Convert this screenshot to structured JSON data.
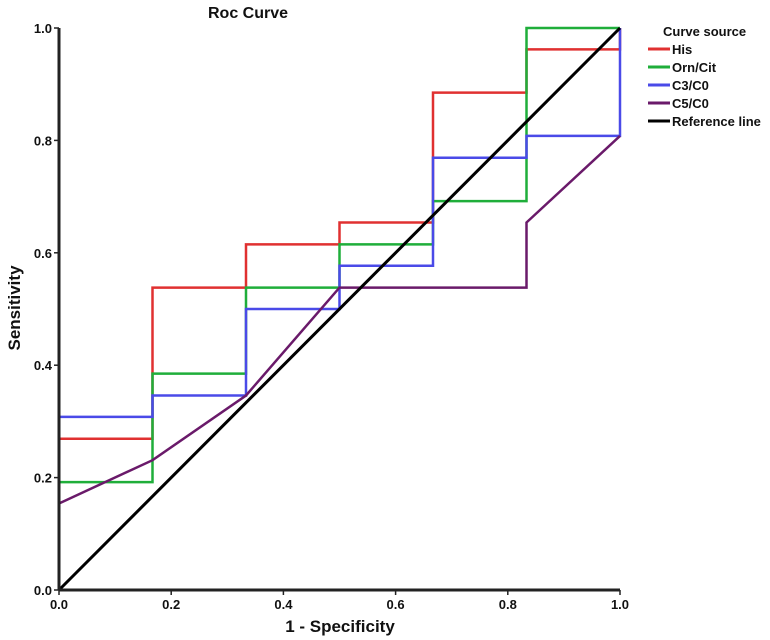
{
  "chart_data": {
    "type": "line",
    "title": "Roc Curve",
    "xlabel": "1 - Specificity",
    "ylabel": "Sensitivity",
    "xlim": [
      0,
      1
    ],
    "ylim": [
      0,
      1
    ],
    "x_ticks": [
      "0.0",
      "0.2",
      "0.4",
      "0.6",
      "0.8",
      "1.0"
    ],
    "y_ticks": [
      "0.0",
      "0.2",
      "0.4",
      "0.6",
      "0.8",
      "1.0"
    ],
    "legend_title": "Curve source",
    "legend_position": "top-right",
    "series": [
      {
        "name": "His",
        "color": "#e03030",
        "points": [
          [
            0,
            0
          ],
          [
            0,
            0.269
          ],
          [
            0.1667,
            0.269
          ],
          [
            0.1667,
            0.538
          ],
          [
            0.3333,
            0.538
          ],
          [
            0.3333,
            0.615
          ],
          [
            0.5,
            0.615
          ],
          [
            0.5,
            0.654
          ],
          [
            0.6667,
            0.654
          ],
          [
            0.6667,
            0.885
          ],
          [
            0.8333,
            0.885
          ],
          [
            0.8333,
            0.962
          ],
          [
            1,
            0.962
          ],
          [
            1,
            1
          ]
        ]
      },
      {
        "name": "Orn/Cit",
        "color": "#1fae3a",
        "points": [
          [
            0,
            0
          ],
          [
            0,
            0.192
          ],
          [
            0.1667,
            0.192
          ],
          [
            0.1667,
            0.385
          ],
          [
            0.3333,
            0.385
          ],
          [
            0.3333,
            0.538
          ],
          [
            0.5,
            0.538
          ],
          [
            0.5,
            0.615
          ],
          [
            0.6667,
            0.615
          ],
          [
            0.6667,
            0.692
          ],
          [
            0.8333,
            0.692
          ],
          [
            0.8333,
            1
          ],
          [
            1,
            1
          ]
        ]
      },
      {
        "name": "C3/C0",
        "color": "#4a4ae8",
        "points": [
          [
            0,
            0
          ],
          [
            0,
            0.308
          ],
          [
            0.1667,
            0.308
          ],
          [
            0.1667,
            0.346
          ],
          [
            0.3333,
            0.346
          ],
          [
            0.3333,
            0.5
          ],
          [
            0.5,
            0.5
          ],
          [
            0.5,
            0.577
          ],
          [
            0.6667,
            0.577
          ],
          [
            0.6667,
            0.769
          ],
          [
            0.8333,
            0.769
          ],
          [
            0.8333,
            0.808
          ],
          [
            1,
            0.808
          ],
          [
            1,
            1
          ]
        ]
      },
      {
        "name": "C5/C0",
        "color": "#6a1a6a",
        "points": [
          [
            0,
            0.154
          ],
          [
            0.1667,
            0.231
          ],
          [
            0.3333,
            0.346
          ],
          [
            0.5,
            0.538
          ],
          [
            0.8333,
            0.538
          ],
          [
            0.8333,
            0.654
          ],
          [
            1,
            0.808
          ]
        ]
      },
      {
        "name": "Reference line",
        "color": "#000000",
        "points": [
          [
            0,
            0
          ],
          [
            1,
            1
          ]
        ]
      }
    ]
  }
}
